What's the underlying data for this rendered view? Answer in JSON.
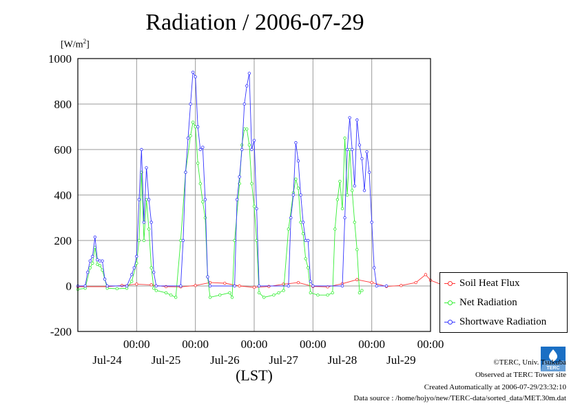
{
  "title": "Radiation / 2006-07-29",
  "unit_label": "[W/m",
  "unit_sup": "2",
  "unit_close": "]",
  "logo_text": "TERC",
  "footer": {
    "copyright": "©TERC, Univ. Tsukuba",
    "observed": "Observed at TERC Tower site",
    "created": "Created Automatically at 2006-07-29/23:32:10",
    "source": "Data source : /home/hojyo/new/TERC-data/sorted_data/MET.30m.dat"
  },
  "colors": {
    "soil": "#ff3333",
    "net": "#33ee33",
    "shortwave": "#3333ff",
    "grid": "#9a9a9a"
  },
  "chart_data": {
    "type": "line",
    "title": "Radiation / 2006-07-29",
    "xlabel": "(LST)",
    "ylabel": "[W/m2]",
    "ylim": [
      -200,
      1000
    ],
    "xlim_hours_from_jul23_00": [
      24,
      168
    ],
    "yticks": [
      -200,
      0,
      200,
      400,
      600,
      800,
      1000
    ],
    "xticks": [
      {
        "time": "00:00",
        "date": "Jul-24"
      },
      {
        "time": "00:00",
        "date": "Jul-25"
      },
      {
        "time": "00:00",
        "date": "Jul-26"
      },
      {
        "time": "00:00",
        "date": "Jul-27"
      },
      {
        "time": "00:00",
        "date": "Jul-28"
      },
      {
        "time": "00:00",
        "date": "Jul-29"
      }
    ],
    "grid": true,
    "legend_position": "bottom-right",
    "series": [
      {
        "name": "Soil Heat Flux",
        "color": "#ff3333",
        "points": [
          [
            24,
            -3
          ],
          [
            36,
            -3
          ],
          [
            42,
            2
          ],
          [
            48,
            8
          ],
          [
            54,
            5
          ],
          [
            60,
            -3
          ],
          [
            66,
            -4
          ],
          [
            72,
            2
          ],
          [
            78,
            15
          ],
          [
            84,
            12
          ],
          [
            90,
            0
          ],
          [
            96,
            -6
          ],
          [
            102,
            -2
          ],
          [
            108,
            8
          ],
          [
            114,
            15
          ],
          [
            120,
            -2
          ],
          [
            126,
            -4
          ],
          [
            132,
            10
          ],
          [
            138,
            28
          ],
          [
            144,
            15
          ],
          [
            150,
            -2
          ],
          [
            156,
            2
          ],
          [
            162,
            15
          ],
          [
            166,
            50
          ],
          [
            168,
            25
          ],
          [
            174,
            0
          ],
          [
            180,
            -10
          ]
        ]
      },
      {
        "name": "Net Radiation",
        "color": "#33ee33",
        "points": [
          [
            24,
            -15
          ],
          [
            27,
            -10
          ],
          [
            29,
            80
          ],
          [
            30,
            100
          ],
          [
            31,
            170
          ],
          [
            32,
            95
          ],
          [
            33,
            90
          ],
          [
            34,
            70
          ],
          [
            35,
            30
          ],
          [
            36,
            -10
          ],
          [
            40,
            -12
          ],
          [
            44,
            -10
          ],
          [
            46,
            20
          ],
          [
            48,
            100
          ],
          [
            49,
            200
          ],
          [
            50,
            500
          ],
          [
            51,
            200
          ],
          [
            52,
            380
          ],
          [
            53,
            250
          ],
          [
            54,
            80
          ],
          [
            55,
            -10
          ],
          [
            56,
            -20
          ],
          [
            60,
            -30
          ],
          [
            62,
            -40
          ],
          [
            64,
            -50
          ],
          [
            66,
            200
          ],
          [
            68,
            500
          ],
          [
            70,
            660
          ],
          [
            71,
            720
          ],
          [
            72,
            700
          ],
          [
            73,
            540
          ],
          [
            74,
            450
          ],
          [
            75,
            370
          ],
          [
            76,
            300
          ],
          [
            77,
            40
          ],
          [
            78,
            -50
          ],
          [
            82,
            -40
          ],
          [
            86,
            -30
          ],
          [
            87,
            -50
          ],
          [
            88,
            200
          ],
          [
            90,
            450
          ],
          [
            91,
            620
          ],
          [
            92,
            690
          ],
          [
            93,
            690
          ],
          [
            94,
            620
          ],
          [
            95,
            450
          ],
          [
            96,
            350
          ],
          [
            97,
            200
          ],
          [
            98,
            -30
          ],
          [
            100,
            -50
          ],
          [
            104,
            -40
          ],
          [
            106,
            -30
          ],
          [
            108,
            -20
          ],
          [
            110,
            250
          ],
          [
            112,
            410
          ],
          [
            113,
            470
          ],
          [
            114,
            430
          ],
          [
            115,
            280
          ],
          [
            116,
            230
          ],
          [
            117,
            120
          ],
          [
            118,
            80
          ],
          [
            119,
            -30
          ],
          [
            122,
            -40
          ],
          [
            126,
            -40
          ],
          [
            128,
            -30
          ],
          [
            129,
            250
          ],
          [
            130,
            380
          ],
          [
            131,
            460
          ],
          [
            132,
            340
          ],
          [
            133,
            650
          ],
          [
            134,
            400
          ],
          [
            135,
            600
          ],
          [
            136,
            420
          ],
          [
            137,
            280
          ],
          [
            138,
            160
          ],
          [
            139,
            -30
          ],
          [
            140,
            -20
          ]
        ]
      },
      {
        "name": "Shortwave Radiation",
        "color": "#3333ff",
        "points": [
          [
            24,
            0
          ],
          [
            27,
            0
          ],
          [
            28,
            60
          ],
          [
            29,
            110
          ],
          [
            30,
            130
          ],
          [
            31,
            215
          ],
          [
            32,
            115
          ],
          [
            33,
            110
          ],
          [
            34,
            110
          ],
          [
            35,
            30
          ],
          [
            36,
            0
          ],
          [
            44,
            0
          ],
          [
            46,
            50
          ],
          [
            47,
            80
          ],
          [
            48,
            130
          ],
          [
            49,
            380
          ],
          [
            50,
            600
          ],
          [
            51,
            280
          ],
          [
            52,
            520
          ],
          [
            53,
            380
          ],
          [
            54,
            280
          ],
          [
            55,
            60
          ],
          [
            56,
            0
          ],
          [
            66,
            0
          ],
          [
            67,
            200
          ],
          [
            68,
            500
          ],
          [
            69,
            650
          ],
          [
            70,
            800
          ],
          [
            71,
            940
          ],
          [
            72,
            920
          ],
          [
            73,
            700
          ],
          [
            74,
            600
          ],
          [
            75,
            610
          ],
          [
            76,
            380
          ],
          [
            77,
            40
          ],
          [
            78,
            0
          ],
          [
            88,
            0
          ],
          [
            89,
            380
          ],
          [
            90,
            480
          ],
          [
            91,
            600
          ],
          [
            92,
            800
          ],
          [
            93,
            880
          ],
          [
            94,
            935
          ],
          [
            95,
            600
          ],
          [
            96,
            640
          ],
          [
            97,
            340
          ],
          [
            98,
            0
          ],
          [
            110,
            0
          ],
          [
            111,
            300
          ],
          [
            112,
            400
          ],
          [
            113,
            630
          ],
          [
            114,
            550
          ],
          [
            115,
            400
          ],
          [
            116,
            280
          ],
          [
            117,
            200
          ],
          [
            118,
            200
          ],
          [
            119,
            20
          ],
          [
            120,
            0
          ],
          [
            132,
            0
          ],
          [
            133,
            300
          ],
          [
            134,
            600
          ],
          [
            135,
            740
          ],
          [
            136,
            600
          ],
          [
            137,
            440
          ],
          [
            138,
            730
          ],
          [
            139,
            620
          ],
          [
            140,
            560
          ],
          [
            141,
            420
          ],
          [
            142,
            590
          ],
          [
            143,
            500
          ],
          [
            144,
            280
          ],
          [
            145,
            80
          ],
          [
            146,
            0
          ],
          [
            150,
            0
          ]
        ]
      }
    ]
  }
}
